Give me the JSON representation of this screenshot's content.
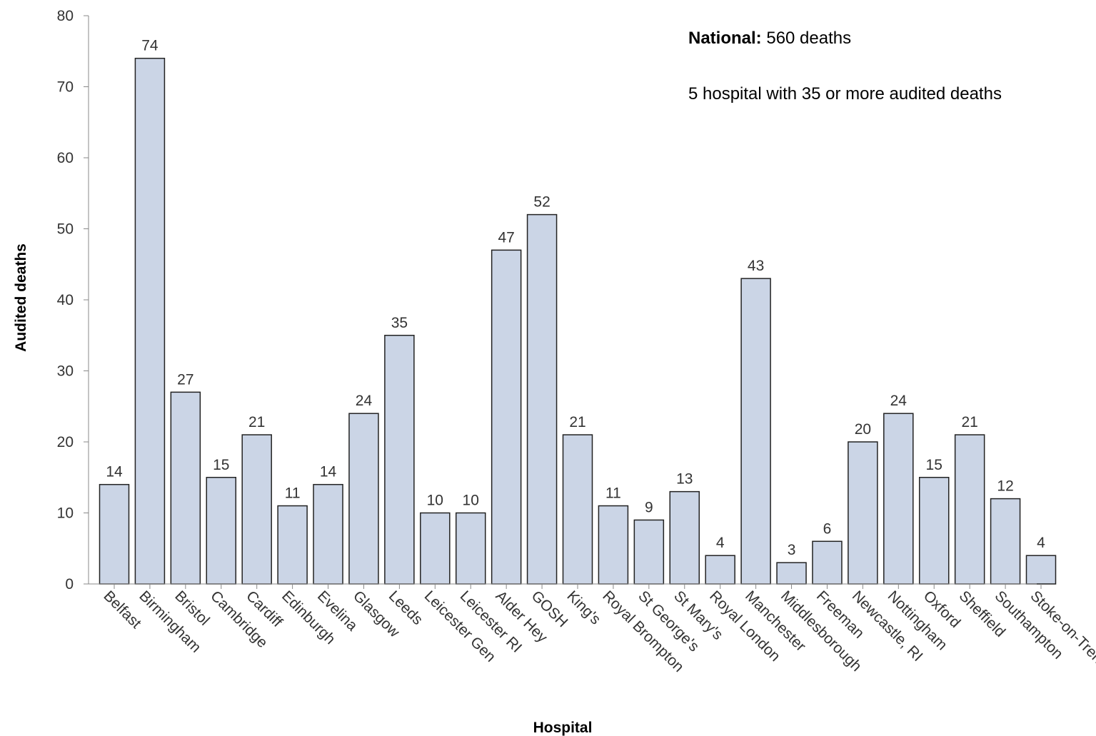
{
  "chart_data": {
    "type": "bar",
    "xlabel": "Hospital",
    "ylabel": "Audited deaths",
    "ylim": [
      0,
      80
    ],
    "yticks": [
      0,
      10,
      20,
      30,
      40,
      50,
      60,
      70,
      80
    ],
    "grid": false,
    "bar_color": "#cbd5e6",
    "bar_edge_color": "#222222",
    "categories": [
      "Belfast",
      "Birmingham",
      "Bristol",
      "Cambridge",
      "Cardiff",
      "Edinburgh",
      "Evelina",
      "Glasgow",
      "Leeds",
      "Leicester Gen",
      "Leicester RI",
      "Alder Hey",
      "GOSH",
      "King's",
      "Royal Brompton",
      "St George's",
      "St Mary's",
      "Royal London",
      "Manchester",
      "Middlesborough",
      "Freeman",
      "Newcastle, RI",
      "Nottingham",
      "Oxford",
      "Sheffield",
      "Southampton",
      "Stoke-on-Trent"
    ],
    "values": [
      14,
      74,
      27,
      15,
      21,
      11,
      14,
      24,
      35,
      10,
      10,
      47,
      52,
      21,
      11,
      9,
      13,
      4,
      43,
      3,
      6,
      20,
      24,
      15,
      21,
      12,
      4
    ],
    "annotations": {
      "national_label": "National:",
      "national_value": "560 deaths",
      "note": "5 hospital with 35 or more audited deaths"
    }
  }
}
